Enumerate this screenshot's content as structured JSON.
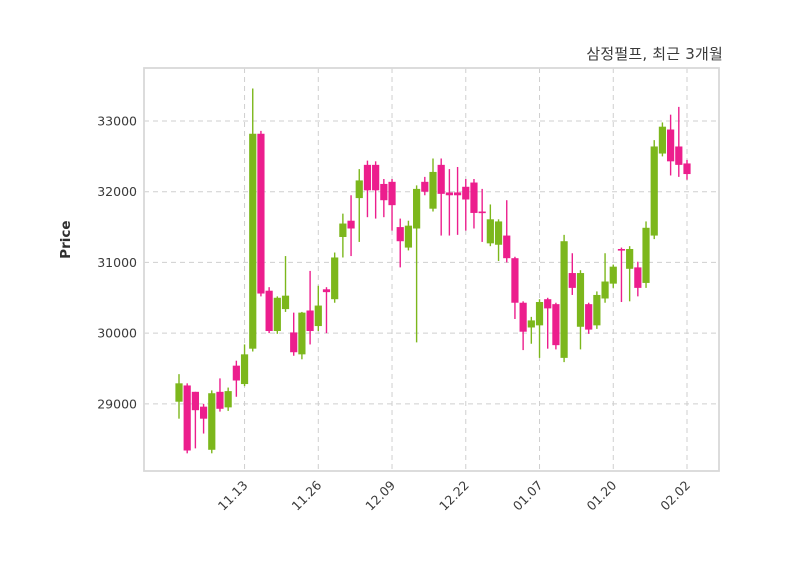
{
  "title": "삼정펄프, 최근 3개월",
  "ylabel": "Price",
  "chart_data": {
    "type": "candlestick",
    "title": "삼정펄프, 최근 3개월",
    "ylabel": "Price",
    "grid": "dashed",
    "up_color": "#7CB71C",
    "down_color": "#EC1E8D",
    "text_color": "#3a3a3a",
    "y_ticks": [
      29000,
      30000,
      31000,
      32000,
      33000
    ],
    "ylim": [
      28050,
      33750
    ],
    "x_tick_labels": [
      "11.13",
      "11.26",
      "12.09",
      "12.22",
      "01.07",
      "01.20",
      "02.02"
    ],
    "x_tick_indices": [
      8,
      17,
      26,
      35,
      44,
      53,
      62
    ],
    "candles": [
      [
        29030,
        29420,
        28790,
        29290
      ],
      [
        29260,
        29290,
        28300,
        28340
      ],
      [
        29170,
        29170,
        28370,
        28910
      ],
      [
        28960,
        29000,
        28580,
        28790
      ],
      [
        28350,
        29190,
        28300,
        29150
      ],
      [
        29170,
        29360,
        28890,
        28930
      ],
      [
        28950,
        29230,
        28900,
        29180
      ],
      [
        29540,
        29610,
        29100,
        29330
      ],
      [
        29280,
        29840,
        29250,
        29700
      ],
      [
        29780,
        33460,
        29740,
        32820
      ],
      [
        32820,
        32860,
        30520,
        30560
      ],
      [
        30600,
        30650,
        30000,
        30030
      ],
      [
        30030,
        30520,
        29990,
        30500
      ],
      [
        30340,
        31090,
        30300,
        30530
      ],
      [
        30010,
        30290,
        29680,
        29730
      ],
      [
        29700,
        30300,
        29630,
        30290
      ],
      [
        30320,
        30880,
        29840,
        30030
      ],
      [
        30100,
        30670,
        30030,
        30390
      ],
      [
        30620,
        30650,
        30000,
        30580
      ],
      [
        30480,
        31140,
        30430,
        31070
      ],
      [
        31360,
        31690,
        31070,
        31550
      ],
      [
        31590,
        31950,
        31090,
        31480
      ],
      [
        31910,
        32320,
        31290,
        32160
      ],
      [
        32380,
        32440,
        31640,
        32020
      ],
      [
        32380,
        32430,
        31620,
        32020
      ],
      [
        32110,
        32180,
        31640,
        31880
      ],
      [
        32140,
        32180,
        31450,
        31810
      ],
      [
        31500,
        31620,
        30930,
        31300
      ],
      [
        31210,
        31590,
        31170,
        31520
      ],
      [
        31480,
        32090,
        29870,
        32040
      ],
      [
        32140,
        32210,
        31950,
        32000
      ],
      [
        31760,
        32470,
        31720,
        32280
      ],
      [
        32380,
        32470,
        31380,
        31970
      ],
      [
        31990,
        32320,
        31380,
        31950
      ],
      [
        31990,
        32350,
        31390,
        31950
      ],
      [
        32070,
        32180,
        31450,
        31890
      ],
      [
        32130,
        32180,
        31480,
        31700
      ],
      [
        31720,
        32040,
        31290,
        31700
      ],
      [
        31270,
        31820,
        31230,
        31610
      ],
      [
        31250,
        31610,
        31020,
        31580
      ],
      [
        31380,
        31880,
        31000,
        31060
      ],
      [
        31060,
        31080,
        30200,
        30430
      ],
      [
        30430,
        30450,
        29760,
        30020
      ],
      [
        30080,
        30230,
        29850,
        30180
      ],
      [
        30110,
        30480,
        29650,
        30440
      ],
      [
        30480,
        30500,
        29780,
        30350
      ],
      [
        30410,
        30430,
        29770,
        29830
      ],
      [
        29650,
        31390,
        29590,
        31300
      ],
      [
        30850,
        31130,
        30540,
        30640
      ],
      [
        30090,
        30890,
        29770,
        30850
      ],
      [
        30410,
        30430,
        29990,
        30050
      ],
      [
        30110,
        30590,
        30060,
        30540
      ],
      [
        30490,
        31130,
        30430,
        30730
      ],
      [
        30700,
        30970,
        30640,
        30940
      ],
      [
        31190,
        31210,
        30440,
        31170
      ],
      [
        30910,
        31230,
        30450,
        31190
      ],
      [
        30930,
        31010,
        30520,
        30640
      ],
      [
        30710,
        31580,
        30640,
        31490
      ],
      [
        31380,
        32730,
        31330,
        32640
      ],
      [
        32540,
        32980,
        32500,
        32920
      ],
      [
        32880,
        33090,
        32230,
        32430
      ],
      [
        32640,
        33200,
        32210,
        32380
      ],
      [
        32400,
        32450,
        32170,
        32250
      ]
    ]
  }
}
